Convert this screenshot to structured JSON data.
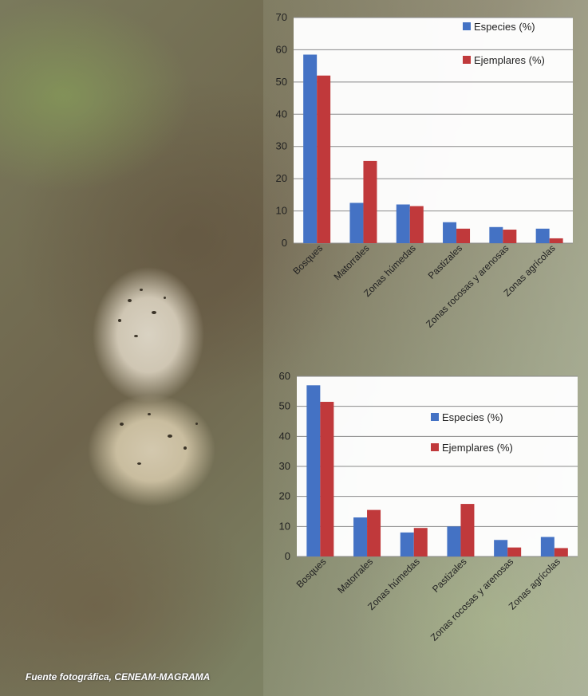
{
  "caption": "Fuente fotográfica, CENEAM-MAGRAMA",
  "colors": {
    "especies": "#4472c4",
    "ejemplares": "#c0393b",
    "grid": "#8a8a8a",
    "plot_bg": "#ffffff"
  },
  "chart_data": [
    {
      "type": "bar",
      "categories": [
        "Bosques",
        "Matorrales",
        "Zonas húmedas",
        "Pastizales",
        "Zonas rocosas y arenosas",
        "Zonas agrícolas"
      ],
      "series": [
        {
          "name": "Especies (%)",
          "values": [
            58.5,
            12.5,
            12,
            6.5,
            5,
            4.5
          ]
        },
        {
          "name": "Ejemplares (%)",
          "values": [
            52,
            25.5,
            11.5,
            4.5,
            4.2,
            1.5
          ]
        }
      ],
      "ylim": [
        0,
        70
      ],
      "yticks": [
        0,
        10,
        20,
        30,
        40,
        50,
        60,
        70
      ],
      "grid": true,
      "legend": "top-right"
    },
    {
      "type": "bar",
      "categories": [
        "Bosques",
        "Matorrales",
        "Zonas húmedas",
        "Pastizales",
        "Zonas rocosas y arenosas",
        "Zonas agrícolas"
      ],
      "series": [
        {
          "name": "Especies (%)",
          "values": [
            57,
            13,
            8,
            10,
            5.5,
            6.5
          ]
        },
        {
          "name": "Ejemplares (%)",
          "values": [
            51.5,
            15.5,
            9.5,
            17.5,
            3,
            2.8
          ]
        }
      ],
      "ylim": [
        0,
        60
      ],
      "yticks": [
        0,
        10,
        20,
        30,
        40,
        50,
        60
      ],
      "grid": true,
      "legend": "right"
    }
  ]
}
